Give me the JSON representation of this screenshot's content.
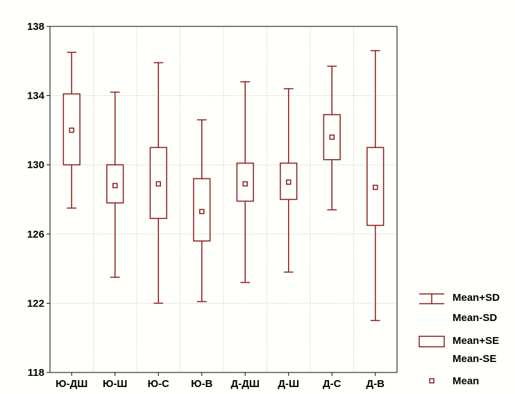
{
  "chart_data": {
    "type": "box",
    "title": "",
    "xlabel": "",
    "ylabel": "",
    "categories": [
      "Ю-ДШ",
      "Ю-Ш",
      "Ю-С",
      "Ю-В",
      "Д-ДШ",
      "Д-Ш",
      "Д-С",
      "Д-В"
    ],
    "ylim": [
      118,
      138
    ],
    "yticks": [
      118,
      122,
      126,
      130,
      134,
      138
    ],
    "grid": true,
    "legend_position": "bottom-right",
    "color": "#8b1a1a",
    "series": [
      {
        "category": "Ю-ДШ",
        "mean": 132.0,
        "se_low": 130.0,
        "se_high": 134.1,
        "sd_low": 127.5,
        "sd_high": 136.5
      },
      {
        "category": "Ю-Ш",
        "mean": 128.8,
        "se_low": 127.8,
        "se_high": 130.0,
        "sd_low": 123.5,
        "sd_high": 134.2
      },
      {
        "category": "Ю-С",
        "mean": 128.9,
        "se_low": 126.9,
        "se_high": 131.0,
        "sd_low": 122.0,
        "sd_high": 135.9
      },
      {
        "category": "Ю-В",
        "mean": 127.3,
        "se_low": 125.6,
        "se_high": 129.2,
        "sd_low": 122.1,
        "sd_high": 132.6
      },
      {
        "category": "Д-ДШ",
        "mean": 128.9,
        "se_low": 127.9,
        "se_high": 130.1,
        "sd_low": 123.2,
        "sd_high": 134.8
      },
      {
        "category": "Д-Ш",
        "mean": 129.0,
        "se_low": 128.0,
        "se_high": 130.1,
        "sd_low": 123.8,
        "sd_high": 134.4
      },
      {
        "category": "Д-С",
        "mean": 131.6,
        "se_low": 130.3,
        "se_high": 132.9,
        "sd_low": 127.4,
        "sd_high": 135.7
      },
      {
        "category": "Д-В",
        "mean": 128.7,
        "se_low": 126.5,
        "se_high": 131.0,
        "sd_low": 121.0,
        "sd_high": 136.6
      }
    ],
    "legend": {
      "whisker": [
        "Mean+SD",
        "Mean-SD"
      ],
      "box": [
        "Mean+SE",
        "Mean-SE"
      ],
      "point": "Mean"
    }
  }
}
